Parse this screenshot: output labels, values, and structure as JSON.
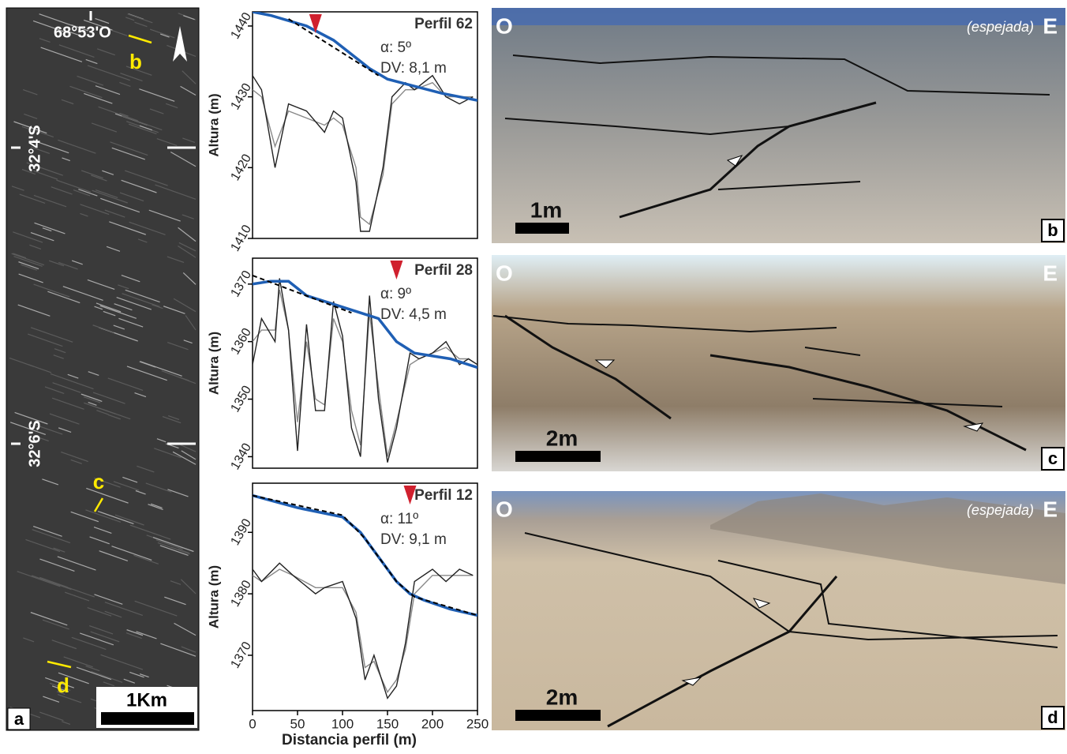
{
  "map": {
    "panel": "a",
    "longitude": "68°53'O",
    "lat_north": "32°4'S",
    "lat_south": "32°6'S",
    "sites": [
      "b",
      "c",
      "d"
    ],
    "scale": "1Km"
  },
  "photos": [
    {
      "panel": "b",
      "west": "O",
      "east": "E",
      "note": "(espejada)",
      "scale": "1m"
    },
    {
      "panel": "c",
      "west": "O",
      "east": "E",
      "scale": "2m"
    },
    {
      "panel": "d",
      "west": "O",
      "east": "E",
      "note": "(espejada)",
      "scale": "2m"
    }
  ],
  "chart_data": [
    {
      "type": "line",
      "title": "Perfil 62",
      "angle": "α: 5º",
      "dv": "DV: 8,1 m",
      "y_label": "Altura (m)",
      "xlim": [
        0,
        250
      ],
      "ylim": [
        1410,
        1442
      ],
      "yticks": [
        1410,
        1420,
        1430,
        1440
      ],
      "marker_x": 70,
      "marker_color": "#d0202e",
      "series": [
        {
          "color": "#888888",
          "x": [
            0,
            10,
            25,
            40,
            60,
            80,
            90,
            100,
            115,
            120,
            130,
            145,
            155,
            170,
            180,
            200,
            215,
            230,
            245
          ],
          "values": [
            1431,
            1430,
            1423,
            1428,
            1427,
            1426,
            1427,
            1426,
            1420,
            1413,
            1412,
            1419,
            1429,
            1431,
            1431,
            1432,
            1430,
            1430,
            1430
          ]
        },
        {
          "color": "#222222",
          "x": [
            0,
            10,
            25,
            40,
            60,
            80,
            90,
            100,
            115,
            120,
            130,
            145,
            155,
            170,
            180,
            200,
            215,
            230,
            245
          ],
          "values": [
            1433,
            1431,
            1420,
            1429,
            1428,
            1425,
            1428,
            1427,
            1418,
            1411,
            1411,
            1420,
            1430,
            1432,
            1431,
            1433,
            1430,
            1429,
            1430
          ]
        },
        {
          "color": "#1f5fb4",
          "x": [
            0,
            20,
            60,
            90,
            110,
            130,
            150,
            180,
            210,
            250
          ],
          "values": [
            1442,
            1441.5,
            1440,
            1438,
            1436,
            1434,
            1432.5,
            1431.5,
            1430.5,
            1429.5
          ]
        },
        {
          "color": "#000000",
          "dashed": true,
          "x": [
            40,
            140
          ],
          "values": [
            1441,
            1433
          ]
        }
      ]
    },
    {
      "type": "line",
      "title": "Perfil 28",
      "angle": "α: 9º",
      "dv": "DV: 4,5 m",
      "y_label": "Altura (m)",
      "xlim": [
        0,
        250
      ],
      "ylim": [
        1338,
        1374.5
      ],
      "yticks": [
        1340,
        1350,
        1360,
        1370
      ],
      "marker_x": 160,
      "marker_color": "#d0202e",
      "series": [
        {
          "color": "#888888",
          "x": [
            0,
            10,
            25,
            30,
            40,
            50,
            60,
            70,
            80,
            90,
            100,
            110,
            120,
            130,
            140,
            150,
            160,
            175,
            185,
            200,
            215,
            230,
            240,
            250
          ],
          "values": [
            1360,
            1362,
            1362,
            1369,
            1362,
            1346,
            1360,
            1350,
            1349,
            1364,
            1360,
            1348,
            1342,
            1365,
            1352,
            1340,
            1346,
            1356,
            1357,
            1358,
            1359,
            1357,
            1357,
            1356
          ]
        },
        {
          "color": "#222222",
          "x": [
            0,
            10,
            25,
            30,
            40,
            50,
            60,
            70,
            80,
            90,
            100,
            110,
            120,
            130,
            140,
            150,
            160,
            175,
            185,
            200,
            215,
            230,
            240,
            250
          ],
          "values": [
            1356,
            1364,
            1360,
            1371,
            1362,
            1341,
            1363,
            1348,
            1348,
            1367,
            1361,
            1345,
            1340,
            1368,
            1350,
            1339,
            1345,
            1358,
            1357,
            1358,
            1360,
            1356,
            1357,
            1356
          ]
        },
        {
          "color": "#1f5fb4",
          "x": [
            0,
            20,
            40,
            60,
            100,
            120,
            140,
            160,
            180,
            220,
            250
          ],
          "values": [
            1370,
            1370.5,
            1370.5,
            1368,
            1366,
            1365,
            1364,
            1360,
            1358,
            1357,
            1355.5
          ]
        },
        {
          "color": "#000000",
          "dashed": true,
          "x": [
            0,
            110
          ],
          "values": [
            1371.5,
            1365
          ]
        }
      ]
    },
    {
      "type": "line",
      "title": "Perfil 12",
      "angle": "α: 11º",
      "dv": "DV: 9,1 m",
      "y_label": "Altura (m)",
      "x_label": "Distancia perfil (m)",
      "xlim": [
        0,
        250
      ],
      "ylim": [
        1361,
        1398
      ],
      "yticks": [
        1370,
        1380,
        1390
      ],
      "xticks": [
        0,
        50,
        100,
        150,
        200,
        250
      ],
      "marker_x": 175,
      "marker_color": "#d0202e",
      "series": [
        {
          "color": "#888888",
          "x": [
            0,
            10,
            30,
            45,
            70,
            80,
            100,
            115,
            125,
            135,
            150,
            160,
            170,
            180,
            200,
            215,
            230,
            245
          ],
          "values": [
            1383,
            1382,
            1384,
            1383,
            1381,
            1381,
            1381,
            1377,
            1368,
            1369,
            1364,
            1366,
            1371,
            1380,
            1383,
            1383,
            1383,
            1383
          ]
        },
        {
          "color": "#222222",
          "x": [
            0,
            10,
            30,
            45,
            70,
            80,
            100,
            115,
            125,
            135,
            150,
            160,
            170,
            180,
            200,
            215,
            230,
            245
          ],
          "values": [
            1384,
            1382,
            1385,
            1383,
            1380,
            1381,
            1382,
            1376,
            1366,
            1370,
            1363,
            1365,
            1372,
            1382,
            1384,
            1382,
            1384,
            1383
          ]
        },
        {
          "color": "#1f5fb4",
          "x": [
            0,
            50,
            100,
            120,
            140,
            160,
            175,
            190,
            220,
            250
          ],
          "values": [
            1396,
            1394,
            1392.5,
            1390,
            1386,
            1382,
            1380,
            1379,
            1377.5,
            1376.5
          ]
        },
        {
          "color": "#000000",
          "dashed": true,
          "x": [
            0,
            100,
            125,
            160,
            180,
            250
          ],
          "values": [
            1396,
            1392.8,
            1389,
            1382,
            1379.5,
            1376.5
          ]
        }
      ]
    }
  ]
}
